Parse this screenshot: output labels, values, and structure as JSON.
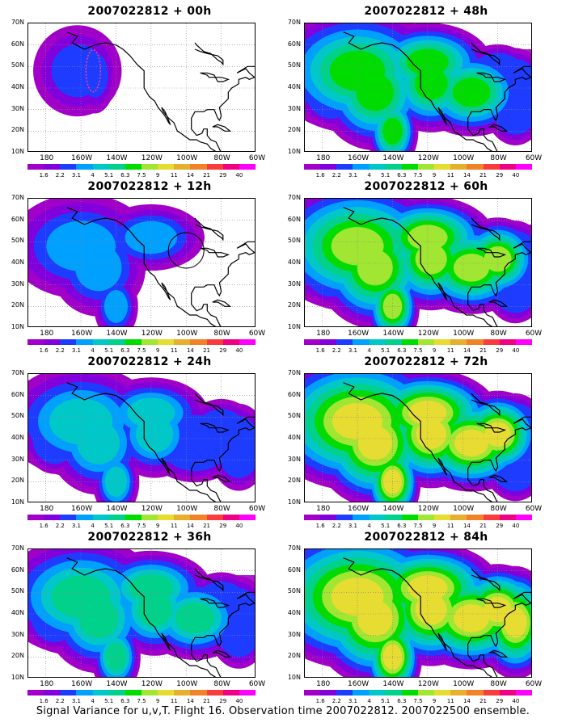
{
  "caption": "Signal Variance for u,v,T. Flight 16. Observation time 2007022812. 2007022500 ensemble.",
  "y_labels": [
    "70N",
    "60N",
    "50N",
    "40N",
    "30N",
    "20N",
    "10N"
  ],
  "x_labels": [
    "180",
    "160W",
    "140W",
    "120W",
    "100W",
    "80W",
    "60W"
  ],
  "colorbar": {
    "labels": [
      "1.6",
      "2.2",
      "3.1",
      "4",
      "5.1",
      "6.3",
      "7.5",
      "9",
      "11",
      "14",
      "21",
      "29",
      "40"
    ],
    "colors": [
      "#a000c8",
      "#8200dc",
      "#1e3cff",
      "#00a0ff",
      "#00c8c8",
      "#00d28c",
      "#00dc00",
      "#a0e632",
      "#e6dc32",
      "#e6af2d",
      "#f08228",
      "#fa3c3c",
      "#f00082",
      "#ff00ff"
    ]
  },
  "panels": [
    {
      "title": "2007022812 + 00h",
      "intensity": 1
    },
    {
      "title": "2007022812 + 48h",
      "intensity": 5
    },
    {
      "title": "2007022812 + 12h",
      "intensity": 2
    },
    {
      "title": "2007022812 + 60h",
      "intensity": 6
    },
    {
      "title": "2007022812 + 24h",
      "intensity": 3
    },
    {
      "title": "2007022812 + 72h",
      "intensity": 7
    },
    {
      "title": "2007022812 + 36h",
      "intensity": 4
    },
    {
      "title": "2007022812 + 84h",
      "intensity": 8
    }
  ]
}
